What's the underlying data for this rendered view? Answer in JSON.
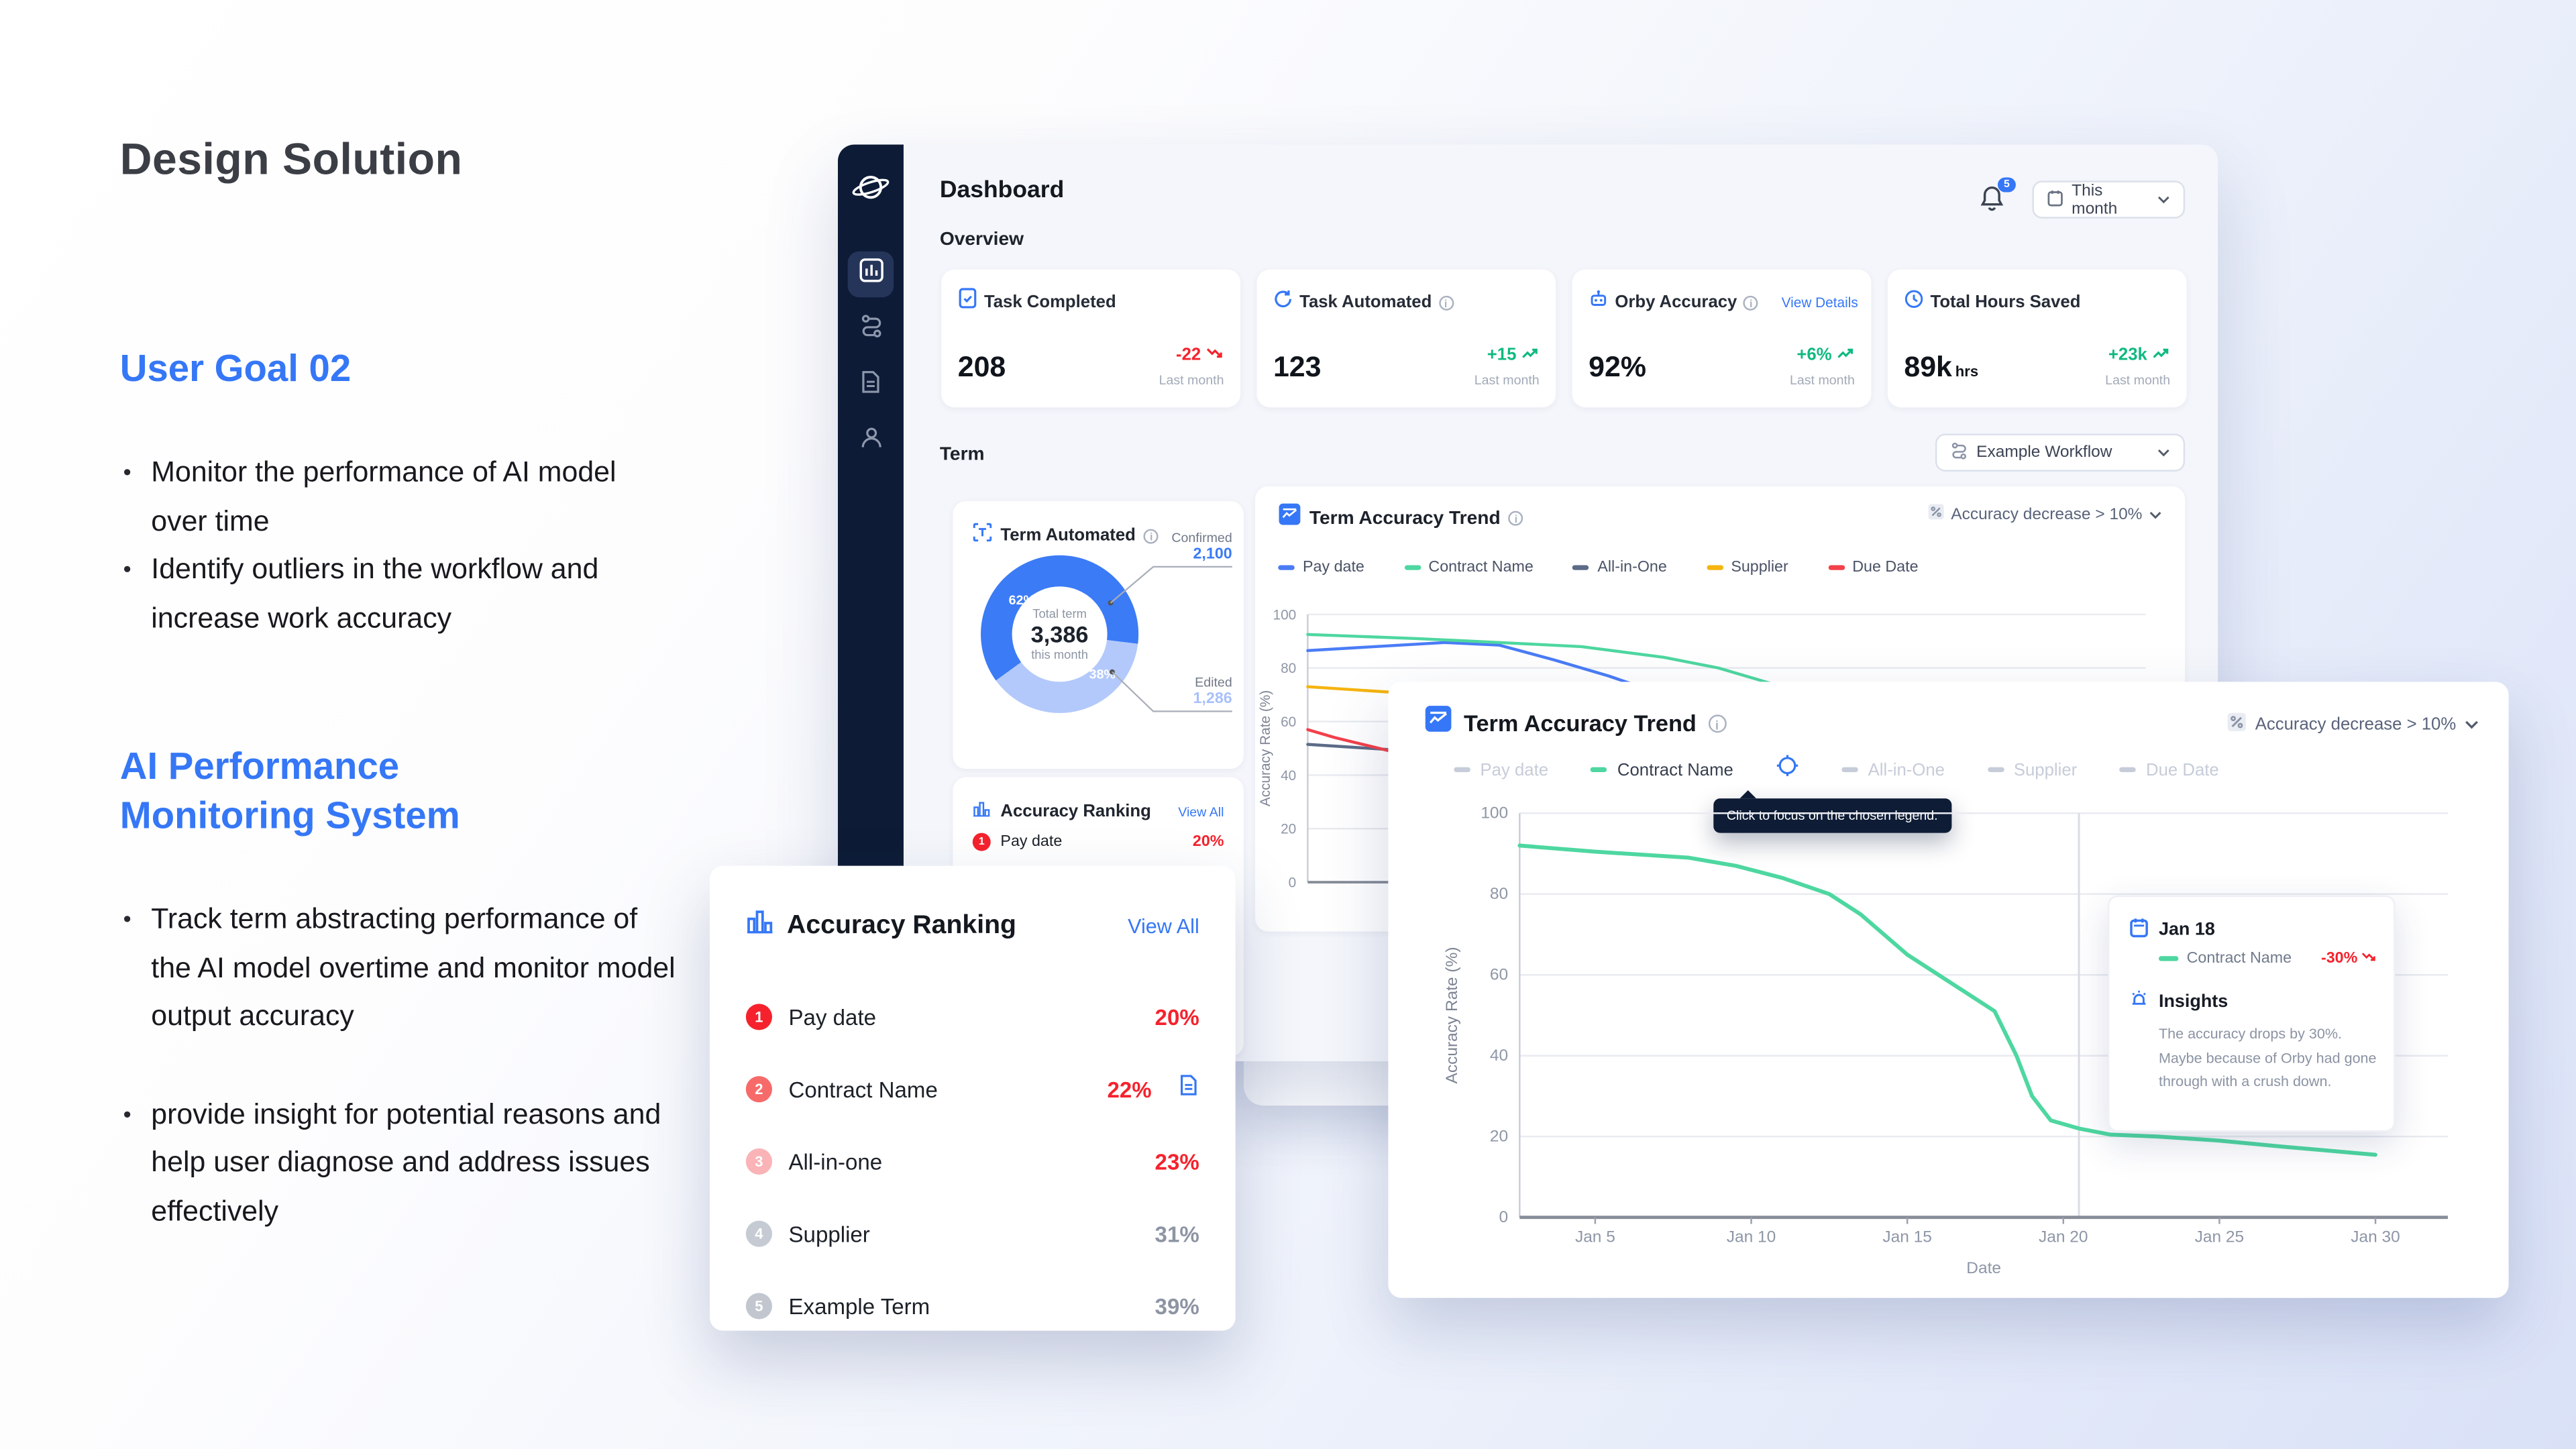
{
  "left_panel": {
    "title": "Design Solution",
    "goal_heading": "User Goal 02",
    "goal_bullets": [
      "Monitor the performance of AI model over time",
      "Identify outliers in the workflow and increase work accuracy"
    ],
    "system_heading": "AI Performance Monitoring System",
    "system_bullets": [
      "Track term abstracting performance of the AI model overtime and monitor model output accuracy",
      "provide insight for potential reasons and help user diagnose and address issues effectively"
    ]
  },
  "header": {
    "title": "Dashboard",
    "notification_count": "5",
    "period": "This month"
  },
  "overview": {
    "label": "Overview",
    "stats": [
      {
        "label": "Task Completed",
        "value": "208",
        "unit": "",
        "delta": "-22",
        "trend": "down",
        "note": "Last month"
      },
      {
        "label": "Task Automated",
        "value": "123",
        "unit": "",
        "delta": "+15",
        "trend": "up",
        "note": "Last month"
      },
      {
        "label": "Orby Accuracy",
        "value": "92%",
        "unit": "",
        "delta": "+6%",
        "trend": "up",
        "note": "Last month",
        "link": "View Details"
      },
      {
        "label": "Total Hours Saved",
        "value": "89k",
        "unit": "hrs",
        "delta": "+23k",
        "trend": "up",
        "note": "Last month"
      }
    ]
  },
  "term": {
    "label": "Term",
    "workflow_select": "Example Workflow",
    "automated": {
      "title": "Term Automated",
      "center_label": "Total term",
      "center_value": "3,386",
      "center_sub": "this month",
      "segments": [
        {
          "name": "Confirmed",
          "value": "2,100",
          "pct": 62,
          "pct_label": "62%",
          "color": "#3b7bf6"
        },
        {
          "name": "Edited",
          "value": "1,286",
          "pct": 38,
          "pct_label": "38%",
          "color": "#b3c9fb"
        }
      ]
    },
    "ranking_preview": {
      "title": "Accuracy Ranking",
      "view_all": "View All",
      "rank": "1",
      "label": "Pay date",
      "value": "20%"
    }
  },
  "trend_small": {
    "title": "Term Accuracy Trend",
    "filter": "Accuracy decrease > 10%",
    "legend": [
      {
        "label": "Pay date",
        "color": "#4a7cf6"
      },
      {
        "label": "Contract Name",
        "color": "#4ed7a0"
      },
      {
        "label": "All-in-One",
        "color": "#5c6b87"
      },
      {
        "label": "Supplier",
        "color": "#f5b40f"
      },
      {
        "label": "Due Date",
        "color": "#f3404a"
      }
    ]
  },
  "ranking_overlay": {
    "title": "Accuracy Ranking",
    "view_all": "View All",
    "rows": [
      {
        "rank": "1",
        "label": "Pay date",
        "value": "20%",
        "tone": "red"
      },
      {
        "rank": "2",
        "label": "Contract Name",
        "value": "22%",
        "tone": "red"
      },
      {
        "rank": "3",
        "label": "All-in-one",
        "value": "23%",
        "tone": "red"
      },
      {
        "rank": "4",
        "label": "Supplier",
        "value": "31%",
        "tone": "gray"
      },
      {
        "rank": "5",
        "label": "Example Term",
        "value": "39%",
        "tone": "gray"
      }
    ]
  },
  "trend_overlay": {
    "title": "Term Accuracy Trend",
    "filter": "Accuracy decrease > 10%",
    "legend": [
      {
        "label": "Pay date",
        "active": false
      },
      {
        "label": "Contract Name",
        "active": true,
        "color": "#4ed7a0"
      },
      {
        "label": "All-in-One",
        "active": false
      },
      {
        "label": "Supplier",
        "active": false
      },
      {
        "label": "Due Date",
        "active": false
      }
    ],
    "hint": "Click to focus on the chosen legend.",
    "tooltip": {
      "date": "Jan 18",
      "series": "Contract Name",
      "delta": "-30%",
      "insights_title": "Insights",
      "insights_text": "The accuracy drops by 30%. Maybe because of Orby had gone through with a crush down."
    }
  },
  "chart_data": [
    {
      "id": "trend-overlay-chart",
      "type": "line",
      "title": "Term Accuracy Trend",
      "xlabel": "Date",
      "ylabel": "Accuracy Rate (%)",
      "ylim": [
        0,
        100
      ],
      "y_ticks": [
        100,
        80,
        60,
        40,
        20,
        0
      ],
      "x_ticks": [
        "Jan 5",
        "Jan 10",
        "Jan 15",
        "Jan 20",
        "Jan 25",
        "Jan 30"
      ],
      "x_tick_days": [
        5,
        10,
        15,
        20,
        25,
        30
      ],
      "x_range": [
        2.58,
        32.32
      ],
      "ref_day": 20.5,
      "grid": true,
      "legend_position": "top",
      "series": [
        {
          "name": "Contract Name",
          "color": "#4ed7a0",
          "width": 2.4,
          "points": [
            [
              2.58,
              92
            ],
            [
              5,
              90.5
            ],
            [
              8,
              89
            ],
            [
              9.5,
              87
            ],
            [
              11,
              84
            ],
            [
              12.5,
              80
            ],
            [
              13.5,
              75
            ],
            [
              15,
              65
            ],
            [
              16,
              60
            ],
            [
              17,
              55
            ],
            [
              17.8,
              51
            ],
            [
              18.5,
              40
            ],
            [
              19,
              30
            ],
            [
              19.6,
              24
            ],
            [
              20.5,
              22
            ],
            [
              21.5,
              20.5
            ],
            [
              23,
              20
            ],
            [
              25,
              19
            ],
            [
              27,
              17.5
            ],
            [
              30,
              15.5
            ]
          ]
        }
      ]
    },
    {
      "id": "trend-small-chart",
      "type": "line",
      "title": "Term Accuracy Trend",
      "xlabel": "",
      "ylabel": "Accuracy Rate (%)",
      "ylim": [
        0,
        100
      ],
      "y_ticks": [
        100,
        80,
        60,
        40,
        20,
        0
      ],
      "x_ticks": [
        "Jan 5",
        "Jan 10",
        "Jan 15",
        "Jan 20",
        "Jan 25",
        "Jan 30"
      ],
      "x_tick_days": [
        5,
        10,
        15,
        20,
        25,
        30
      ],
      "x_range": [
        1,
        31.6
      ],
      "grid": true,
      "legend_position": "top",
      "series": [
        {
          "name": "Pay date",
          "color": "#4a7cf6",
          "width": 1.8,
          "points": [
            [
              1,
              86.5
            ],
            [
              6,
              89.5
            ],
            [
              8,
              88.5
            ],
            [
              10,
              83
            ],
            [
              12,
              77
            ],
            [
              14,
              70
            ],
            [
              16,
              60
            ],
            [
              20,
              48
            ],
            [
              25,
              42
            ],
            [
              30,
              40
            ]
          ]
        },
        {
          "name": "Contract Name",
          "color": "#4ed7a0",
          "width": 1.8,
          "points": [
            [
              1,
              92.5
            ],
            [
              5,
              91
            ],
            [
              8,
              89.5
            ],
            [
              11,
              88
            ],
            [
              14,
              84
            ],
            [
              16,
              80
            ],
            [
              18,
              74
            ],
            [
              20,
              66
            ],
            [
              23,
              55
            ],
            [
              26,
              45
            ],
            [
              30,
              40
            ]
          ]
        },
        {
          "name": "All-in-One",
          "color": "#5c6b87",
          "width": 1.8,
          "points": [
            [
              1,
              51.5
            ],
            [
              4,
              49.5
            ],
            [
              8,
              46
            ],
            [
              12,
              44
            ],
            [
              16,
              42
            ],
            [
              20,
              40
            ],
            [
              25,
              38
            ],
            [
              30,
              36
            ]
          ]
        },
        {
          "name": "Supplier",
          "color": "#f5b40f",
          "width": 1.8,
          "points": [
            [
              1,
              73
            ],
            [
              4,
              71
            ],
            [
              8,
              67.5
            ],
            [
              12,
              64
            ],
            [
              16,
              60
            ],
            [
              20,
              57
            ],
            [
              25,
              53
            ],
            [
              30,
              50
            ]
          ]
        },
        {
          "name": "Due Date",
          "color": "#f3404a",
          "width": 1.8,
          "points": [
            [
              1,
              57
            ],
            [
              2,
              54
            ],
            [
              4,
              49
            ],
            [
              6,
              45.5
            ],
            [
              8,
              42
            ],
            [
              12,
              36
            ],
            [
              16,
              31
            ],
            [
              20,
              27
            ],
            [
              25,
              23
            ],
            [
              30,
              20
            ]
          ]
        }
      ]
    }
  ]
}
